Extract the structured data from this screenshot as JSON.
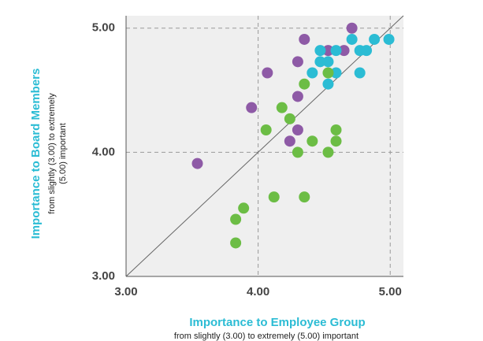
{
  "chart_data": {
    "type": "scatter",
    "xlabel": "Importance to Employee Group",
    "xlabel_note": "from slightly (3.00) to extremely (5.00) important",
    "ylabel": "Importance to Board Members",
    "ylabel_note": [
      "from slightly (3.00) to extremely",
      "(5.00) important"
    ],
    "xlim": [
      3,
      5.1
    ],
    "ylim": [
      3,
      5.1
    ],
    "xticks": [
      {
        "value": 3,
        "label": "3.00"
      },
      {
        "value": 4,
        "label": "4.00"
      },
      {
        "value": 5,
        "label": "5.00"
      }
    ],
    "yticks": [
      {
        "value": 3,
        "label": "3.00"
      },
      {
        "value": 4,
        "label": "4.00"
      },
      {
        "value": 5,
        "label": "5.00"
      }
    ],
    "grid": true,
    "series": [
      {
        "color": "#8e5aa6",
        "x": [
          4.71,
          4.35,
          4.53,
          4.65,
          4.3,
          4.07,
          4.3,
          3.95,
          4.3,
          4.24,
          3.54
        ],
        "values": [
          5.0,
          4.91,
          4.82,
          4.82,
          4.73,
          4.64,
          4.45,
          4.36,
          4.18,
          4.09,
          3.91
        ]
      },
      {
        "color": "#2bbcd4",
        "x": [
          4.71,
          4.88,
          4.99,
          4.47,
          4.59,
          4.77,
          4.82,
          4.47,
          4.53,
          4.41,
          4.59,
          4.77,
          4.53
        ],
        "values": [
          4.91,
          4.91,
          4.91,
          4.82,
          4.82,
          4.82,
          4.82,
          4.73,
          4.73,
          4.64,
          4.64,
          4.64,
          4.55
        ]
      },
      {
        "color": "#6cbd45",
        "x": [
          4.53,
          4.35,
          4.18,
          4.24,
          4.06,
          4.59,
          4.41,
          4.59,
          4.3,
          4.53,
          4.12,
          4.35,
          3.89,
          3.83,
          3.83
        ],
        "values": [
          4.64,
          4.55,
          4.36,
          4.27,
          4.18,
          4.18,
          4.09,
          4.09,
          4.0,
          4.0,
          3.64,
          3.64,
          3.55,
          3.46,
          3.27
        ]
      }
    ]
  }
}
